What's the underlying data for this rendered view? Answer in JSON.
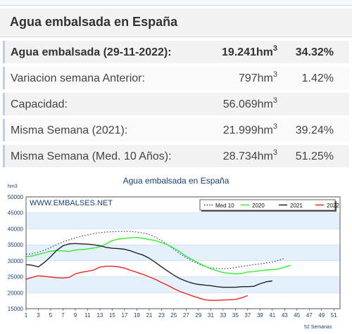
{
  "header": {
    "title": "Agua embalsada en España"
  },
  "stats": {
    "rows": [
      {
        "label": "Agua embalsada (29-11-2022):",
        "value": "19.241",
        "unit": "hm",
        "exp": "3",
        "pct": "34.32%",
        "bold": true
      },
      {
        "label": "Variacion semana Anterior:",
        "value": "797",
        "unit": "hm",
        "exp": "3",
        "pct": "1.42%",
        "bold": false
      },
      {
        "label": "Capacidad:",
        "value": "56.069",
        "unit": "hm",
        "exp": "3",
        "pct": "",
        "bold": false
      },
      {
        "label": "Misma Semana (2021):",
        "value": "21.999",
        "unit": "hm",
        "exp": "3",
        "pct": "39.24%",
        "bold": false
      },
      {
        "label": "Misma Semana (Med. 10 Años):",
        "value": "28.734",
        "unit": "hm",
        "exp": "3",
        "pct": "51.25%",
        "bold": false
      }
    ]
  },
  "chart_data": {
    "type": "line",
    "title": "Agua embalsada en España",
    "ylabel": "hm3",
    "xlabel": "52 Semanas",
    "watermark": "WWW.EMBALSES.NET",
    "ylim": [
      15000,
      50000
    ],
    "yticks": [
      "15000",
      "20000",
      "25000",
      "30000",
      "35000",
      "40000",
      "45000",
      "50000"
    ],
    "xticks": [
      "1",
      "3",
      "5",
      "7",
      "9",
      "11",
      "13",
      "15",
      "17",
      "19",
      "21",
      "23",
      "25",
      "27",
      "29",
      "31",
      "33",
      "35",
      "37",
      "39",
      "41",
      "43",
      "45",
      "47",
      "49",
      "51"
    ],
    "grid": true,
    "legend": "top-right",
    "series": [
      {
        "name": "Med 10",
        "color": "#3333aa",
        "dash": true,
        "values": [
          32000,
          32200,
          32700,
          33300,
          34200,
          35100,
          35900,
          36600,
          37200,
          37700,
          38100,
          38500,
          38800,
          39000,
          39100,
          39200,
          39200,
          39200,
          39000,
          38700,
          38200,
          37400,
          36300,
          35000,
          33600,
          32200,
          31000,
          29900,
          29000,
          28300,
          27800,
          27600,
          27500,
          27600,
          27900,
          28200,
          28500,
          28800,
          29000,
          29300,
          29600,
          30100,
          30800
        ]
      },
      {
        "name": "2020",
        "color": "#33ee33",
        "dash": false,
        "values": [
          31300,
          31500,
          32000,
          32500,
          33000,
          33200,
          33100,
          32900,
          33400,
          33500,
          33700,
          34000,
          34400,
          35300,
          36300,
          36800,
          37000,
          37200,
          37300,
          37000,
          36700,
          36300,
          35700,
          35000,
          34000,
          32800,
          31400,
          30400,
          29300,
          28400,
          27500,
          26900,
          26300,
          26100,
          25900,
          26000,
          26500,
          26600,
          26900,
          27100,
          27200,
          27400,
          28000,
          28600
        ]
      },
      {
        "name": "2021",
        "color": "#222222",
        "dash": false,
        "values": [
          28800,
          28600,
          28100,
          29500,
          31300,
          33300,
          34700,
          35300,
          35400,
          35300,
          35200,
          35000,
          34700,
          34200,
          33900,
          33800,
          33600,
          33100,
          32400,
          31800,
          30800,
          29500,
          28100,
          26800,
          25500,
          24400,
          23600,
          23000,
          22600,
          22400,
          22200,
          21900,
          21700,
          21700,
          21700,
          21900,
          21900,
          22000,
          22800,
          23400,
          23700
        ]
      },
      {
        "name": "2022",
        "color": "#ee2222",
        "dash": false,
        "values": [
          24200,
          24800,
          25300,
          25100,
          24900,
          24700,
          24600,
          24800,
          25900,
          26400,
          26700,
          27100,
          28000,
          28300,
          28300,
          28100,
          27700,
          27000,
          26400,
          25700,
          25000,
          24200,
          23200,
          22300,
          21300,
          20400,
          19700,
          19000,
          18400,
          17800,
          17600,
          17600,
          17700,
          17800,
          17900,
          18400,
          19100
        ]
      }
    ]
  }
}
